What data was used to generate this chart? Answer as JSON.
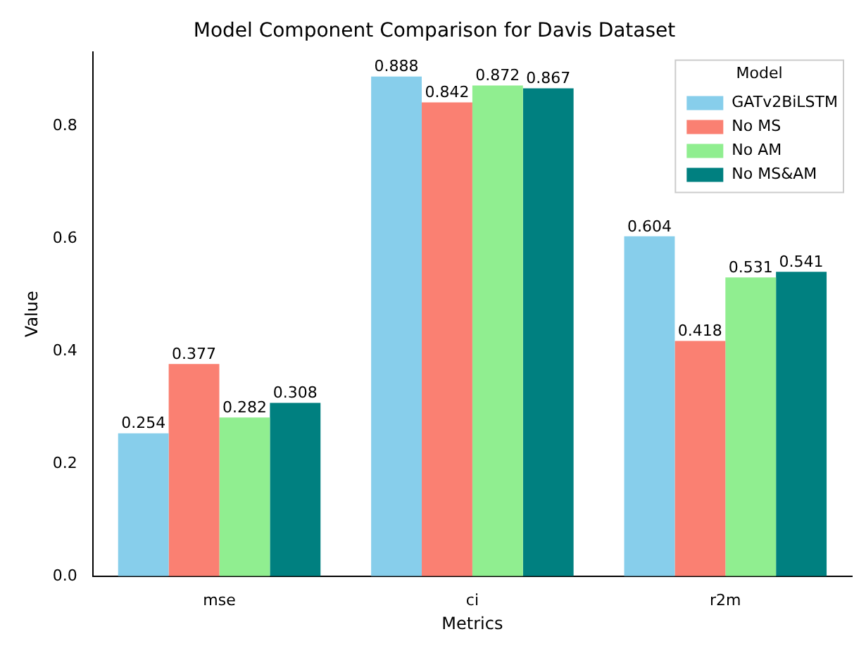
{
  "chart_data": {
    "type": "bar",
    "title": "Model Component Comparison for Davis Dataset",
    "xlabel": "Metrics",
    "ylabel": "Value",
    "legend_title": "Model",
    "categories": [
      "mse",
      "ci",
      "r2m"
    ],
    "series": [
      {
        "name": "GATv2BiLSTM",
        "color": "#87ceeb",
        "values": [
          0.254,
          0.888,
          0.604
        ]
      },
      {
        "name": "No MS",
        "color": "#fa8072",
        "values": [
          0.377,
          0.842,
          0.418
        ]
      },
      {
        "name": "No AM",
        "color": "#90ee90",
        "values": [
          0.282,
          0.872,
          0.531
        ]
      },
      {
        "name": "No MS&AM",
        "color": "#008080",
        "values": [
          0.308,
          0.867,
          0.541
        ]
      }
    ],
    "ylim": [
      0,
      0.932
    ],
    "yticks": [
      {
        "value": 0,
        "label": "0.0"
      },
      {
        "value": 0.2,
        "label": "0.2"
      },
      {
        "value": 0.4,
        "label": "0.4"
      },
      {
        "value": 0.6,
        "label": "0.6"
      },
      {
        "value": 0.8,
        "label": "0.8"
      }
    ],
    "data_labels": true,
    "legend": "top right",
    "grid": false
  }
}
